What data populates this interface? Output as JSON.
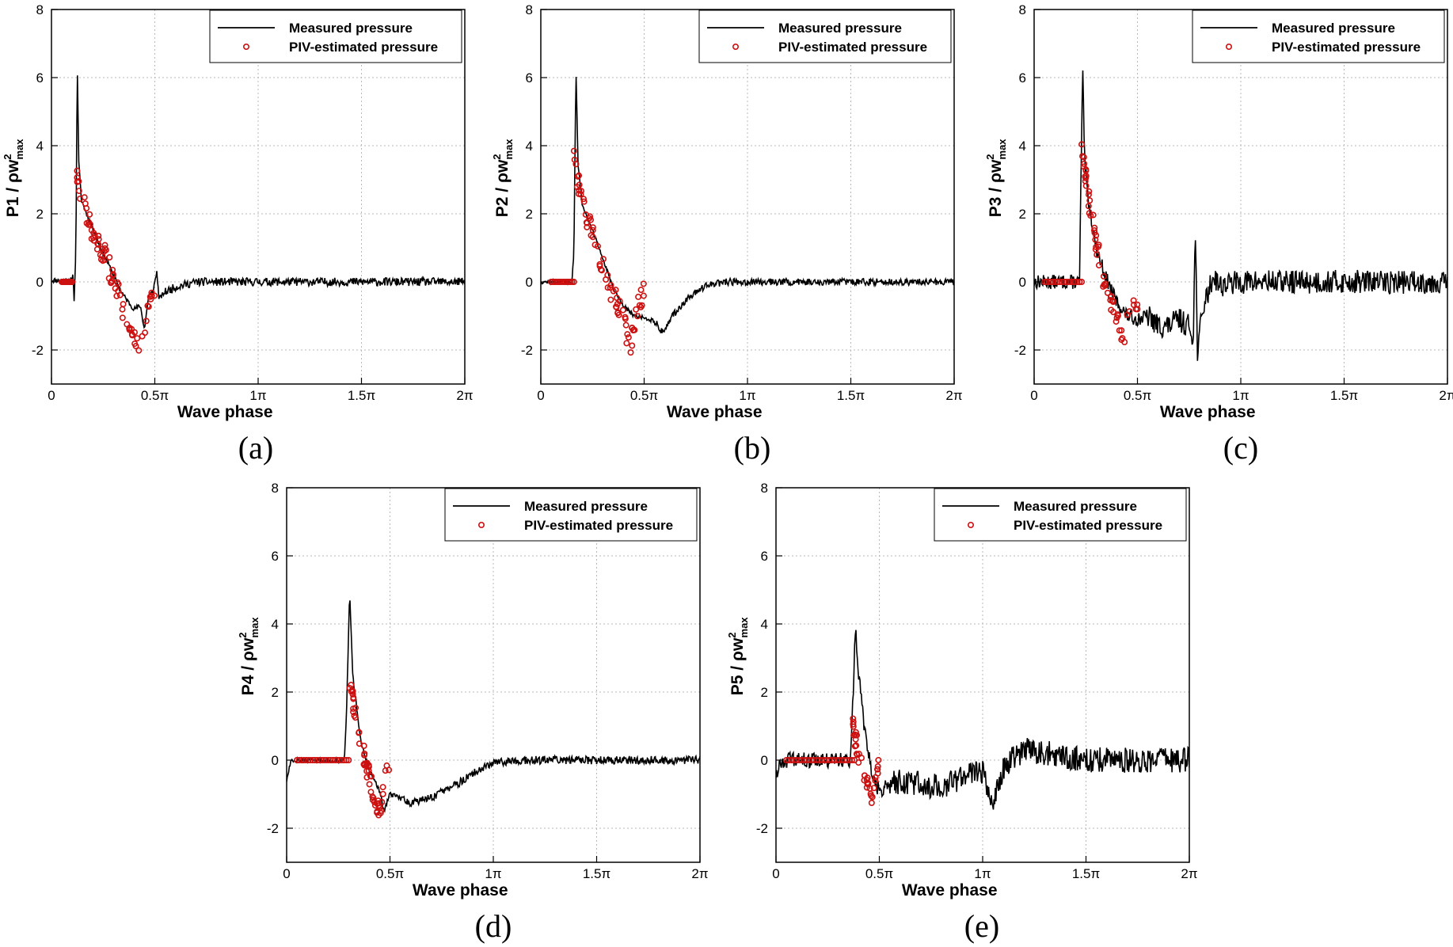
{
  "figure": {
    "panel_labels": [
      "(a)",
      "(b)",
      "(c)",
      "(d)",
      "(e)"
    ],
    "legend": {
      "line_label": "Measured pressure",
      "marker_label": "PIV-estimated pressure"
    },
    "x_tick_labels": [
      "0",
      "0.5π",
      "1π",
      "1.5π",
      "2π"
    ],
    "y_tick_labels": [
      "-2",
      "0",
      "2",
      "4",
      "6",
      "8"
    ],
    "colors": {
      "line": "#000000",
      "marker": "#cc1111",
      "grid": "#b8b8b8"
    }
  },
  "chart_data": [
    {
      "type": "line",
      "title": "(a)",
      "xlabel": "Wave phase",
      "ylabel": {
        "main": "P1 / ρw",
        "sup": "2",
        "sub": "max"
      },
      "xlim": [
        0,
        2
      ],
      "ylim": [
        -3,
        8
      ],
      "xticks": [
        0,
        0.5,
        1,
        1.5,
        2
      ],
      "yticks": [
        -2,
        0,
        2,
        4,
        6,
        8
      ],
      "grid": true,
      "legend_position": "top-right",
      "series": [
        {
          "name": "Measured pressure",
          "style": "line",
          "seed": 11,
          "noise": 0.12,
          "points": [
            [
              0,
              0.05
            ],
            [
              0.1,
              0.05
            ],
            [
              0.105,
              0.2
            ],
            [
              0.11,
              -0.6
            ],
            [
              0.118,
              1.0
            ],
            [
              0.125,
              6.45
            ],
            [
              0.132,
              3.5
            ],
            [
              0.145,
              2.4
            ],
            [
              0.17,
              2.0
            ],
            [
              0.2,
              1.6
            ],
            [
              0.23,
              1.1
            ],
            [
              0.27,
              0.6
            ],
            [
              0.3,
              0.2
            ],
            [
              0.33,
              -0.2
            ],
            [
              0.36,
              -0.5
            ],
            [
              0.4,
              -0.8
            ],
            [
              0.43,
              -0.7
            ],
            [
              0.45,
              -1.4
            ],
            [
              0.47,
              -0.4
            ],
            [
              0.49,
              -0.3
            ],
            [
              0.51,
              0.3
            ],
            [
              0.52,
              -0.5
            ],
            [
              0.55,
              -0.3
            ],
            [
              0.6,
              -0.15
            ],
            [
              0.7,
              0
            ],
            [
              2,
              0
            ]
          ]
        },
        {
          "name": "PIV-estimated pressure",
          "style": "markers",
          "seed": 21,
          "flat": {
            "x0": 0.05,
            "x1": 0.1,
            "n": 12,
            "y": 0
          },
          "scatter": {
            "x0": 0.11,
            "x1": 0.5,
            "n": 75,
            "spread": 0.35,
            "curve": [
              [
                0.11,
                3.4
              ],
              [
                0.15,
                2.4
              ],
              [
                0.2,
                1.5
              ],
              [
                0.25,
                0.9
              ],
              [
                0.3,
                0.1
              ],
              [
                0.35,
                -0.9
              ],
              [
                0.4,
                -1.5
              ],
              [
                0.43,
                -2.0
              ],
              [
                0.46,
                -1.0
              ],
              [
                0.5,
                -0.3
              ]
            ]
          }
        }
      ]
    },
    {
      "type": "line",
      "title": "(b)",
      "xlabel": "Wave phase",
      "ylabel": {
        "main": "P2 / ρw",
        "sup": "2",
        "sub": "max"
      },
      "xlim": [
        0,
        2
      ],
      "ylim": [
        -3,
        8
      ],
      "xticks": [
        0,
        0.5,
        1,
        1.5,
        2
      ],
      "yticks": [
        -2,
        0,
        2,
        4,
        6,
        8
      ],
      "grid": true,
      "legend_position": "top-right",
      "series": [
        {
          "name": "Measured pressure",
          "style": "line",
          "seed": 12,
          "noise": 0.1,
          "points": [
            [
              0,
              0
            ],
            [
              0.15,
              0
            ],
            [
              0.16,
              0.8
            ],
            [
              0.17,
              6.25
            ],
            [
              0.18,
              3.5
            ],
            [
              0.2,
              2.3
            ],
            [
              0.25,
              1.5
            ],
            [
              0.3,
              0.7
            ],
            [
              0.35,
              -0.2
            ],
            [
              0.4,
              -0.7
            ],
            [
              0.45,
              -1.0
            ],
            [
              0.5,
              -1.05
            ],
            [
              0.55,
              -1.15
            ],
            [
              0.59,
              -1.5
            ],
            [
              0.63,
              -1.05
            ],
            [
              0.7,
              -0.55
            ],
            [
              0.8,
              -0.1
            ],
            [
              0.9,
              0
            ],
            [
              2,
              0
            ]
          ]
        },
        {
          "name": "PIV-estimated pressure",
          "style": "markers",
          "seed": 22,
          "flat": {
            "x0": 0.05,
            "x1": 0.16,
            "n": 14,
            "y": 0
          },
          "scatter": {
            "x0": 0.16,
            "x1": 0.5,
            "n": 70,
            "spread": 0.35,
            "curve": [
              [
                0.16,
                3.6
              ],
              [
                0.2,
                2.3
              ],
              [
                0.25,
                1.4
              ],
              [
                0.3,
                0.5
              ],
              [
                0.35,
                -0.4
              ],
              [
                0.4,
                -1.1
              ],
              [
                0.43,
                -2.0
              ],
              [
                0.46,
                -0.8
              ],
              [
                0.5,
                -0.3
              ]
            ]
          }
        }
      ]
    },
    {
      "type": "line",
      "title": "(c)",
      "xlabel": "Wave phase",
      "ylabel": {
        "main": "P3 / ρw",
        "sup": "2",
        "sub": "max"
      },
      "xlim": [
        0,
        2
      ],
      "ylim": [
        -3,
        8
      ],
      "xticks": [
        0,
        0.5,
        1,
        1.5,
        2
      ],
      "yticks": [
        -2,
        0,
        2,
        4,
        6,
        8
      ],
      "grid": true,
      "legend_position": "top-right",
      "series": [
        {
          "name": "Measured pressure",
          "style": "line",
          "seed": 13,
          "noise": 0.35,
          "points": [
            [
              0,
              0
            ],
            [
              0.22,
              0
            ],
            [
              0.225,
              2.4
            ],
            [
              0.235,
              6.15
            ],
            [
              0.245,
              3.5
            ],
            [
              0.26,
              2.5
            ],
            [
              0.3,
              1.0
            ],
            [
              0.35,
              0.1
            ],
            [
              0.4,
              -0.6
            ],
            [
              0.45,
              -1.0
            ],
            [
              0.5,
              -1.1
            ],
            [
              0.55,
              -1.0
            ],
            [
              0.6,
              -1.3
            ],
            [
              0.65,
              -1.3
            ],
            [
              0.7,
              -1.1
            ],
            [
              0.75,
              -1.3
            ],
            [
              0.77,
              -1.6
            ],
            [
              0.78,
              1.55
            ],
            [
              0.79,
              -2.0
            ],
            [
              0.82,
              -0.7
            ],
            [
              0.87,
              0.2
            ],
            [
              0.9,
              -0.1
            ],
            [
              1.0,
              0
            ],
            [
              2,
              0
            ]
          ]
        },
        {
          "name": "PIV-estimated pressure",
          "style": "markers",
          "seed": 23,
          "flat": {
            "x0": 0.05,
            "x1": 0.23,
            "n": 18,
            "y": 0
          },
          "scatter": {
            "x0": 0.23,
            "x1": 0.5,
            "n": 60,
            "spread": 0.35,
            "curve": [
              [
                0.23,
                3.8
              ],
              [
                0.26,
                2.6
              ],
              [
                0.3,
                1.2
              ],
              [
                0.35,
                -0.3
              ],
              [
                0.4,
                -1.2
              ],
              [
                0.43,
                -1.8
              ],
              [
                0.47,
                -0.7
              ],
              [
                0.5,
                -0.5
              ]
            ]
          }
        }
      ]
    },
    {
      "type": "line",
      "title": "(d)",
      "xlabel": "Wave phase",
      "ylabel": {
        "main": "P4 / ρw",
        "sup": "2",
        "sub": "max"
      },
      "xlim": [
        0,
        2
      ],
      "ylim": [
        -3,
        8
      ],
      "xticks": [
        0,
        0.5,
        1,
        1.5,
        2
      ],
      "yticks": [
        -2,
        0,
        2,
        4,
        6,
        8
      ],
      "grid": true,
      "legend_position": "top-right",
      "series": [
        {
          "name": "Measured pressure",
          "style": "line",
          "seed": 14,
          "noise": 0.12,
          "points": [
            [
              0,
              -0.6
            ],
            [
              0.02,
              0
            ],
            [
              0.28,
              0
            ],
            [
              0.29,
              1.5
            ],
            [
              0.305,
              4.95
            ],
            [
              0.32,
              2.5
            ],
            [
              0.36,
              0.5
            ],
            [
              0.4,
              -0.3
            ],
            [
              0.45,
              -0.9
            ],
            [
              0.47,
              -1.5
            ],
            [
              0.5,
              -1.0
            ],
            [
              0.55,
              -1.1
            ],
            [
              0.6,
              -1.25
            ],
            [
              0.7,
              -1.1
            ],
            [
              0.8,
              -0.8
            ],
            [
              0.9,
              -0.4
            ],
            [
              1.0,
              -0.1
            ],
            [
              1.1,
              0
            ],
            [
              2,
              0
            ]
          ]
        },
        {
          "name": "PIV-estimated pressure",
          "style": "markers",
          "seed": 24,
          "flat": {
            "x0": 0.05,
            "x1": 0.3,
            "n": 24,
            "y": 0
          },
          "scatter": {
            "x0": 0.3,
            "x1": 0.5,
            "n": 55,
            "spread": 0.3,
            "curve": [
              [
                0.3,
                2.5
              ],
              [
                0.33,
                1.4
              ],
              [
                0.36,
                0.5
              ],
              [
                0.4,
                -0.5
              ],
              [
                0.43,
                -1.2
              ],
              [
                0.45,
                -1.6
              ],
              [
                0.48,
                -0.5
              ],
              [
                0.5,
                0
              ]
            ]
          }
        }
      ]
    },
    {
      "type": "line",
      "title": "(e)",
      "xlabel": "Wave phase",
      "ylabel": {
        "main": "P5 / ρw",
        "sup": "2",
        "sub": "max"
      },
      "xlim": [
        0,
        2
      ],
      "ylim": [
        -3,
        8
      ],
      "xticks": [
        0,
        0.5,
        1,
        1.5,
        2
      ],
      "yticks": [
        -2,
        0,
        2,
        4,
        6,
        8
      ],
      "grid": true,
      "legend_position": "top-right",
      "series": [
        {
          "name": "Measured pressure",
          "style": "line",
          "seed": 15,
          "noise": 0.38,
          "points": [
            [
              0,
              -0.4
            ],
            [
              0.03,
              0
            ],
            [
              0.36,
              0
            ],
            [
              0.37,
              1.5
            ],
            [
              0.385,
              3.85
            ],
            [
              0.4,
              2.5
            ],
            [
              0.43,
              0.8
            ],
            [
              0.47,
              -0.6
            ],
            [
              0.5,
              -0.9
            ],
            [
              0.6,
              -0.6
            ],
            [
              0.7,
              -0.7
            ],
            [
              0.8,
              -0.8
            ],
            [
              0.9,
              -0.5
            ],
            [
              1.0,
              -0.3
            ],
            [
              1.05,
              -1.2
            ],
            [
              1.1,
              -0.2
            ],
            [
              1.2,
              0.3
            ],
            [
              1.3,
              0.2
            ],
            [
              1.4,
              0.1
            ],
            [
              1.5,
              0
            ],
            [
              2,
              0
            ]
          ]
        },
        {
          "name": "PIV-estimated pressure",
          "style": "markers",
          "seed": 25,
          "flat": {
            "x0": 0.05,
            "x1": 0.38,
            "n": 28,
            "y": 0
          },
          "scatter": {
            "x0": 0.37,
            "x1": 0.5,
            "n": 40,
            "spread": 0.3,
            "curve": [
              [
                0.37,
                1.0
              ],
              [
                0.4,
                0.2
              ],
              [
                0.43,
                -0.5
              ],
              [
                0.46,
                -1.1
              ],
              [
                0.48,
                -0.8
              ],
              [
                0.5,
                0
              ]
            ]
          }
        }
      ]
    }
  ]
}
